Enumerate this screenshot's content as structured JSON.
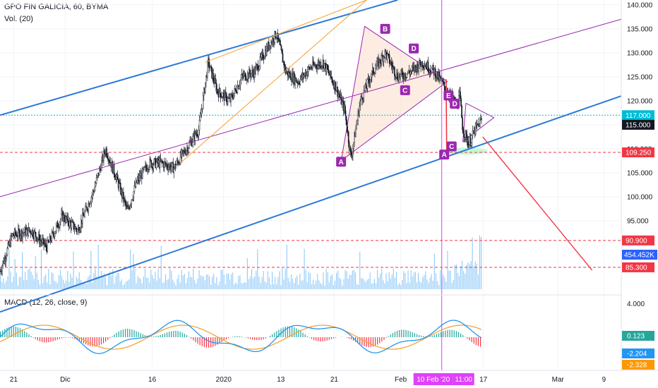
{
  "header": {
    "symbol_title": "GPO FIN GALICIA, 60, BYMA",
    "volume_label": "Vol. (20)",
    "macd_label": "MACD (12, 26, close, 9)"
  },
  "chart_data": {
    "type": "candlestick",
    "title": "GPO FIN GALICIA, 60, BYMA",
    "price_axis": {
      "ticks": [
        "140.000",
        "135.000",
        "130.000",
        "125.000",
        "120.000",
        "115.000",
        "110.000",
        "105.000",
        "100.000",
        "95.000"
      ],
      "range": [
        80,
        141
      ]
    },
    "time_axis": {
      "ticks": [
        "21",
        "Dic",
        "16",
        "2020",
        "13",
        "21",
        "Feb",
        "17",
        "Mar",
        "9"
      ]
    },
    "price_markers": [
      {
        "label": "117.000",
        "value": 117.0,
        "color": "#00bcd4"
      },
      {
        "label": "115.000",
        "value": 115.0,
        "color": "#131722"
      },
      {
        "label": "109.250",
        "value": 109.25,
        "color": "#f23645"
      },
      {
        "label": "90.900",
        "value": 90.9,
        "color": "#f23645"
      },
      {
        "label": "85.300",
        "value": 85.3,
        "color": "#f23645"
      }
    ],
    "volume_marker": {
      "label": "454.452K",
      "color": "#2962ff"
    },
    "crosshair": {
      "date_label": "10 Feb '20",
      "time_label": "11:00",
      "color": "#e040fb"
    },
    "pattern_points": [
      {
        "label": "A",
        "t": 0.549,
        "price": 107.3
      },
      {
        "label": "B",
        "t": 0.62,
        "price": 135.0
      },
      {
        "label": "C",
        "t": 0.652,
        "price": 122.2
      },
      {
        "label": "D",
        "t": 0.666,
        "price": 130.9
      },
      {
        "label": "E",
        "t": 0.722,
        "price": 121.1
      },
      {
        "label": "D",
        "t": 0.732,
        "price": 119.4
      },
      {
        "label": "A",
        "t": 0.715,
        "price": 108.8
      },
      {
        "label": "C",
        "t": 0.727,
        "price": 110.5
      }
    ],
    "macd": {
      "ticks": [
        "4.000"
      ],
      "markers": [
        {
          "label": "0.123",
          "color": "#26a69a"
        },
        {
          "label": "-2.204",
          "color": "#2196f3"
        },
        {
          "label": "-2.328",
          "color": "#ff9800"
        }
      ]
    },
    "series": [
      {
        "name": "Price",
        "values": []
      },
      {
        "name": "Vol",
        "values": []
      },
      {
        "name": "MACD",
        "values": []
      }
    ],
    "colors": {
      "up": "#26a69a",
      "down": "#131722",
      "channel": "#2d7ad6",
      "orange": "#f7a233",
      "purple": "#9c27b0",
      "red": "#f23645",
      "volume": "#90caf9",
      "cyan": "#00bcd4",
      "pattern_fill": "#fbe4d5"
    }
  }
}
